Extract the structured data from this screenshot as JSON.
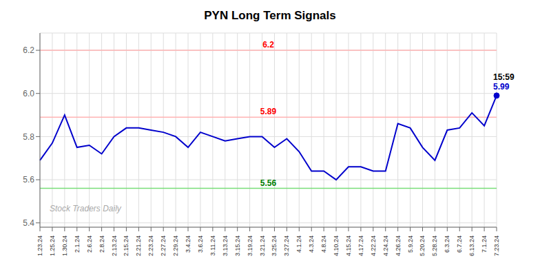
{
  "chart_data": {
    "type": "line",
    "title": "PYN Long Term Signals",
    "watermark": "Stock Traders Daily",
    "categories": [
      "1.23.24",
      "1.25.24",
      "1.30.24",
      "2.1.24",
      "2.6.24",
      "2.8.24",
      "2.13.24",
      "2.15.24",
      "2.21.24",
      "2.23.24",
      "2.27.24",
      "2.29.24",
      "3.4.24",
      "3.6.24",
      "3.11.24",
      "3.13.24",
      "3.15.24",
      "3.19.24",
      "3.21.24",
      "3.25.24",
      "3.27.24",
      "4.1.24",
      "4.3.24",
      "4.8.24",
      "4.10.24",
      "4.15.24",
      "4.17.24",
      "4.22.24",
      "4.24.24",
      "4.26.24",
      "5.9.24",
      "5.20.24",
      "5.28.24",
      "6.3.24",
      "6.7.24",
      "6.13.24",
      "7.1.24",
      "7.23.24"
    ],
    "values": [
      5.69,
      5.77,
      5.9,
      5.75,
      5.76,
      5.72,
      5.8,
      5.84,
      5.84,
      5.83,
      5.82,
      5.8,
      5.75,
      5.82,
      5.8,
      5.78,
      5.79,
      5.8,
      5.8,
      5.75,
      5.79,
      5.73,
      5.64,
      5.64,
      5.6,
      5.66,
      5.66,
      5.64,
      5.64,
      5.86,
      5.84,
      5.75,
      5.69,
      5.83,
      5.84,
      5.91,
      5.85,
      5.99
    ],
    "color": "#0000cc",
    "marker": "last",
    "ylim": [
      5.38,
      6.28
    ],
    "yticks": [
      5.4,
      5.6,
      5.8,
      {
        "value": 6,
        "label": "6.0"
      },
      6.2
    ],
    "grid": true,
    "hlines": [
      {
        "value": 6.2,
        "label": "6.2",
        "color": "#ffb3b3",
        "label_color": "red"
      },
      {
        "value": 5.89,
        "label": "5.89",
        "color": "#ffb3b3",
        "label_color": "red"
      },
      {
        "value": 5.56,
        "label": "5.56",
        "color": "#77dd77",
        "label_color": "green"
      }
    ],
    "annotations": [
      {
        "text": "15:59",
        "color": "black"
      },
      {
        "text": "5.99",
        "color": "#0000cc"
      }
    ]
  }
}
